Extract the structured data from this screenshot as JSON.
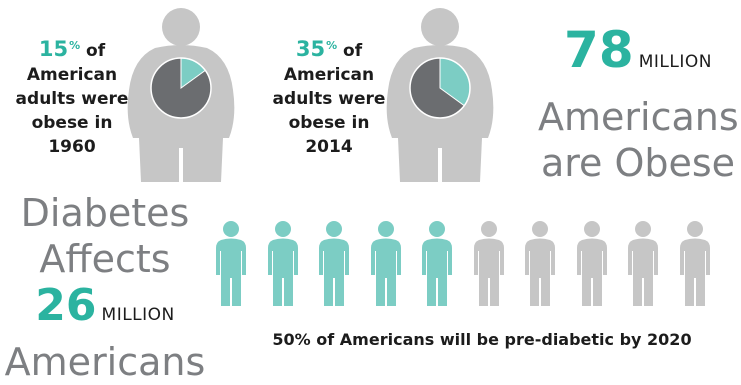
{
  "obesity_1960": {
    "percent": "15",
    "percent_sign": "%",
    "line1": "of",
    "line2": "American",
    "line3": "adults were",
    "line4": "obese in 1960",
    "fraction": 0.15
  },
  "obesity_2014": {
    "percent": "35",
    "percent_sign": "%",
    "line1": "of",
    "line2": "American",
    "line3": "adults were",
    "line4": "obese in 2014",
    "fraction": 0.35
  },
  "obese_total": {
    "number": "78",
    "unit": "MILLION",
    "line1": "Americans",
    "line2": "are Obese"
  },
  "diabetes": {
    "line1": "Diabetes",
    "line2": "Affects",
    "number": "26",
    "unit": "MILLION",
    "line3": "Americans"
  },
  "prediabetic": {
    "caption": "50% of Americans will be pre-diabetic by 2020",
    "highlighted_count": 5,
    "total_count": 10
  },
  "colors": {
    "teal": "#7ccdc4",
    "teal_text": "#2bb3a0",
    "gray_figure": "#c6c6c6",
    "pie_gray": "#6b6d70"
  }
}
